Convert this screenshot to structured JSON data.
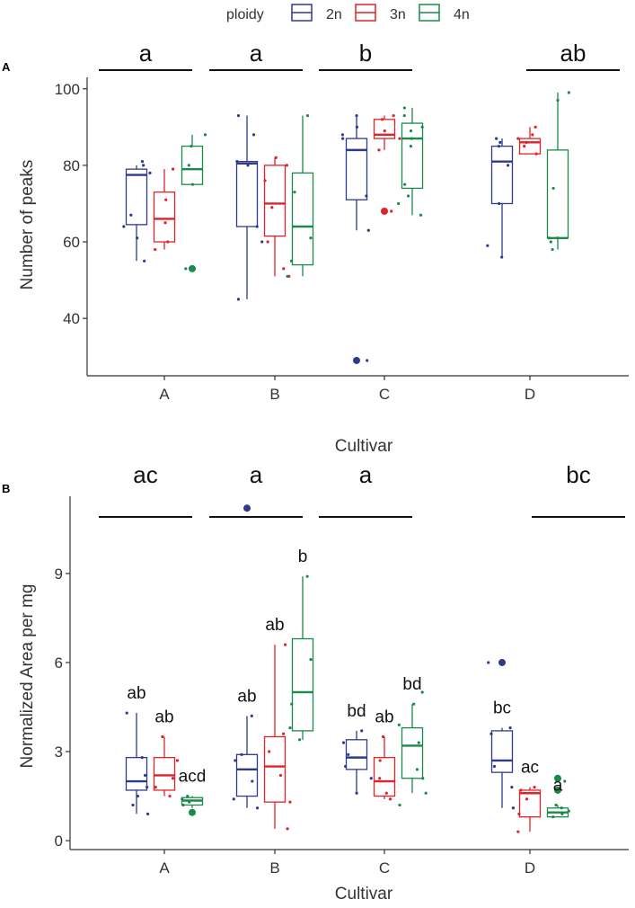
{
  "legend": {
    "title": "ploidy",
    "items": [
      {
        "label": "2n",
        "color": "#2e3a8c"
      },
      {
        "label": "3n",
        "color": "#e0222a"
      },
      {
        "label": "4n",
        "color": "#1a8a4a"
      }
    ]
  },
  "chart_data": [
    {
      "panel": "A",
      "type": "box",
      "xlabel": "Cultivar",
      "ylabel": "Number of peaks",
      "ylim": [
        25,
        103
      ],
      "yticks": [
        40,
        60,
        80,
        100
      ],
      "categories": [
        "A",
        "B",
        "C",
        "D"
      ],
      "group_letters": [
        "a",
        "a",
        "b",
        "ab"
      ],
      "series": [
        {
          "name": "2n",
          "color": "#2e3a8c",
          "boxes": [
            {
              "q1": 64.5,
              "median": 77.5,
              "q3": 79,
              "lo": 55,
              "hi": 80,
              "outliers": [],
              "points": [
                55,
                61,
                64,
                67,
                78,
                80,
                81
              ]
            },
            {
              "q1": 64,
              "median": 80.5,
              "q3": 81,
              "lo": 45,
              "hi": 93,
              "outliers": [],
              "points": [
                45,
                60,
                64,
                80,
                81,
                88,
                93
              ]
            },
            {
              "q1": 71,
              "median": 84,
              "q3": 87,
              "lo": 63,
              "hi": 93,
              "outliers": [
                29
              ],
              "points": [
                29,
                63,
                72,
                87,
                88,
                90,
                93
              ]
            },
            {
              "q1": 70,
              "median": 81,
              "q3": 85,
              "lo": 56,
              "hi": 87,
              "outliers": [],
              "points": [
                56,
                59,
                70,
                80,
                85,
                86,
                87
              ]
            }
          ]
        },
        {
          "name": "3n",
          "color": "#e0222a",
          "boxes": [
            {
              "q1": 60,
              "median": 66,
              "q3": 73,
              "lo": 58,
              "hi": 79,
              "outliers": [],
              "points": [
                58,
                60,
                65,
                71,
                79
              ]
            },
            {
              "q1": 61.5,
              "median": 70,
              "q3": 80,
              "lo": 51,
              "hi": 82,
              "outliers": [],
              "points": [
                51,
                53,
                60,
                69,
                76,
                80,
                82
              ]
            },
            {
              "q1": 87,
              "median": 88,
              "q3": 92,
              "lo": 84,
              "hi": 93,
              "outliers": [
                68
              ],
              "points": [
                68,
                84,
                87,
                89,
                92,
                93
              ]
            },
            {
              "q1": 83,
              "median": 86,
              "q3": 87,
              "lo": 83,
              "hi": 90,
              "outliers": [],
              "points": [
                83,
                85,
                86,
                87,
                88,
                90
              ]
            }
          ]
        },
        {
          "name": "4n",
          "color": "#1a8a4a",
          "boxes": [
            {
              "q1": 75,
              "median": 79,
              "q3": 85,
              "lo": 75,
              "hi": 88,
              "outliers": [
                53
              ],
              "points": [
                53,
                75,
                80,
                85,
                88
              ]
            },
            {
              "q1": 54,
              "median": 64,
              "q3": 78,
              "lo": 51,
              "hi": 93,
              "outliers": [],
              "points": [
                51,
                55,
                61,
                73,
                93
              ]
            },
            {
              "q1": 74,
              "median": 87,
              "q3": 91,
              "lo": 67,
              "hi": 95,
              "outliers": [],
              "points": [
                67,
                70,
                72,
                75,
                85,
                87,
                89,
                90,
                93,
                95
              ]
            },
            {
              "q1": 61,
              "median": 61,
              "q3": 84,
              "lo": 58,
              "hi": 99,
              "outliers": [],
              "points": [
                58,
                60,
                61,
                61,
                74,
                97,
                99
              ]
            }
          ]
        }
      ]
    },
    {
      "panel": "B",
      "type": "box",
      "xlabel": "Cultivar",
      "ylabel": "Normalized Area per mg",
      "ylim": [
        -0.3,
        11.6
      ],
      "yticks": [
        0,
        3,
        6,
        9
      ],
      "categories": [
        "A",
        "B",
        "C",
        "D"
      ],
      "group_letters": [
        "ac",
        "a",
        "a",
        "bc"
      ],
      "series": [
        {
          "name": "2n",
          "color": "#2e3a8c",
          "boxes": [
            {
              "q1": 1.7,
              "median": 2.0,
              "q3": 2.8,
              "lo": 0.9,
              "hi": 4.3,
              "outliers": [],
              "points": [
                0.9,
                1.2,
                1.5,
                1.8,
                2.2,
                2.8,
                4.3
              ],
              "letter": "ab"
            },
            {
              "q1": 1.5,
              "median": 2.4,
              "q3": 2.9,
              "lo": 1.1,
              "hi": 4.2,
              "outliers": [
                11.2
              ],
              "points": [
                1.1,
                1.4,
                2.0,
                2.7,
                2.9,
                4.2
              ],
              "letter": "ab"
            },
            {
              "q1": 2.4,
              "median": 2.8,
              "q3": 3.4,
              "lo": 1.6,
              "hi": 3.7,
              "outliers": [],
              "points": [
                1.6,
                2.1,
                2.5,
                2.9,
                3.3,
                3.7
              ],
              "letter": "bd"
            },
            {
              "q1": 2.3,
              "median": 2.7,
              "q3": 3.7,
              "lo": 1.1,
              "hi": 3.8,
              "outliers": [
                6.0
              ],
              "points": [
                1.1,
                1.8,
                2.5,
                3.6,
                3.8,
                6.0
              ],
              "letter": "bc"
            }
          ]
        },
        {
          "name": "3n",
          "color": "#e0222a",
          "boxes": [
            {
              "q1": 1.7,
              "median": 2.2,
              "q3": 2.8,
              "lo": 1.5,
              "hi": 3.5,
              "outliers": [],
              "points": [
                1.5,
                1.8,
                2.1,
                2.7,
                3.5
              ],
              "letter": "ab"
            },
            {
              "q1": 1.3,
              "median": 2.5,
              "q3": 3.5,
              "lo": 0.4,
              "hi": 6.6,
              "outliers": [],
              "points": [
                0.4,
                1.3,
                2.2,
                3.0,
                3.6,
                6.6
              ],
              "letter": "ab"
            },
            {
              "q1": 1.5,
              "median": 2.0,
              "q3": 2.8,
              "lo": 1.4,
              "hi": 3.5,
              "outliers": [],
              "points": [
                1.4,
                1.6,
                2.1,
                2.7,
                3.5
              ],
              "letter": "ab"
            },
            {
              "q1": 0.8,
              "median": 1.6,
              "q3": 1.7,
              "lo": 0.3,
              "hi": 1.8,
              "outliers": [],
              "points": [
                0.3,
                0.9,
                1.4,
                1.7,
                1.8
              ],
              "letter": "ac"
            }
          ]
        },
        {
          "name": "4n",
          "color": "#1a8a4a",
          "boxes": [
            {
              "q1": 1.2,
              "median": 1.35,
              "q3": 1.45,
              "lo": 1.1,
              "hi": 1.5,
              "outliers": [
                0.95
              ],
              "points": [
                0.95,
                1.2,
                1.3,
                1.4,
                1.5
              ],
              "letter": "acd"
            },
            {
              "q1": 3.7,
              "median": 5.0,
              "q3": 6.8,
              "lo": 3.4,
              "hi": 8.9,
              "outliers": [],
              "points": [
                3.4,
                3.8,
                4.6,
                6.1,
                8.9
              ],
              "letter": "b"
            },
            {
              "q1": 2.1,
              "median": 3.2,
              "q3": 3.8,
              "lo": 1.6,
              "hi": 4.6,
              "outliers": [],
              "points": [
                1.2,
                1.6,
                2.1,
                2.4,
                3.3,
                3.9,
                4.6,
                5.0
              ],
              "letter": "bd"
            },
            {
              "q1": 0.8,
              "median": 0.95,
              "q3": 1.1,
              "lo": 0.8,
              "hi": 1.2,
              "outliers": [
                1.7,
                2.1
              ],
              "points": [
                0.8,
                0.9,
                1.0,
                1.1,
                1.2,
                2.0
              ],
              "letter": "a"
            }
          ]
        }
      ]
    }
  ]
}
